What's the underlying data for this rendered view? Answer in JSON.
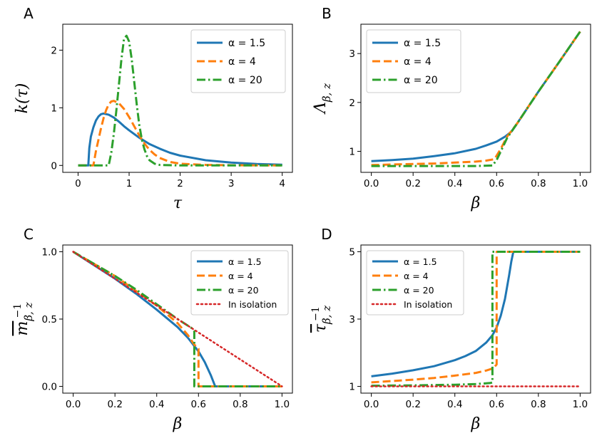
{
  "colors": {
    "a15": "#1f77b4",
    "a4": "#ff7f0e",
    "a20": "#2ca02c",
    "iso": "#d62728"
  },
  "chart_data": [
    {
      "id": "A",
      "type": "line",
      "panel_label": "A",
      "xlabel": "τ",
      "ylabel": "k(τ)",
      "xlim": [
        -0.3,
        4.2
      ],
      "ylim": [
        -0.12,
        2.45
      ],
      "xticks": [
        0,
        1,
        2,
        3,
        4
      ],
      "yticks": [
        0,
        1,
        2
      ],
      "xtick_labels": [
        "0",
        "1",
        "2",
        "3",
        "4"
      ],
      "ytick_labels": [
        "0",
        "1",
        "2"
      ],
      "legend_position": "top-right",
      "series": [
        {
          "name": "α = 1.5",
          "color_key": "a15",
          "style": "solid",
          "x": [
            0,
            0.2,
            0.22,
            0.25,
            0.3,
            0.35,
            0.4,
            0.45,
            0.5,
            0.6,
            0.7,
            0.8,
            0.9,
            1.0,
            1.2,
            1.4,
            1.6,
            1.8,
            2.0,
            2.5,
            3.0,
            3.5,
            4.0
          ],
          "y": [
            0,
            0,
            0.3,
            0.5,
            0.66,
            0.78,
            0.85,
            0.89,
            0.9,
            0.88,
            0.83,
            0.76,
            0.68,
            0.61,
            0.48,
            0.37,
            0.29,
            0.22,
            0.17,
            0.09,
            0.05,
            0.025,
            0.012
          ]
        },
        {
          "name": "α = 4",
          "color_key": "a4",
          "style": "dashed",
          "x": [
            0,
            0.3,
            0.35,
            0.4,
            0.45,
            0.5,
            0.55,
            0.6,
            0.65,
            0.7,
            0.8,
            0.9,
            1.0,
            1.1,
            1.2,
            1.3,
            1.4,
            1.5,
            1.6,
            1.8,
            2.0,
            2.5,
            3.0,
            4.0
          ],
          "y": [
            0,
            0,
            0.25,
            0.45,
            0.65,
            0.82,
            0.96,
            1.06,
            1.11,
            1.12,
            1.08,
            0.98,
            0.84,
            0.68,
            0.52,
            0.38,
            0.27,
            0.19,
            0.13,
            0.06,
            0.03,
            0.01,
            0.003,
            0
          ]
        },
        {
          "name": "α = 20",
          "color_key": "a20",
          "style": "dashdot",
          "x": [
            0,
            0.6,
            0.65,
            0.7,
            0.75,
            0.8,
            0.85,
            0.9,
            0.95,
            1.0,
            1.05,
            1.1,
            1.15,
            1.2,
            1.25,
            1.3,
            1.35,
            1.4,
            1.5,
            1.6,
            2.0,
            4.0
          ],
          "y": [
            0,
            0,
            0.22,
            0.55,
            0.95,
            1.4,
            1.85,
            2.2,
            2.25,
            2.15,
            1.85,
            1.45,
            1.05,
            0.7,
            0.45,
            0.28,
            0.16,
            0.09,
            0.03,
            0.008,
            0,
            0
          ]
        }
      ]
    },
    {
      "id": "B",
      "type": "line",
      "panel_label": "B",
      "xlabel": "β",
      "ylabel": "Λβ,z",
      "ylabel_main": "Λ",
      "ylabel_sub": "β, z",
      "xlim": [
        -0.05,
        1.05
      ],
      "ylim": [
        0.57,
        3.6
      ],
      "xticks": [
        0,
        0.2,
        0.4,
        0.6,
        0.8,
        1.0
      ],
      "yticks": [
        1,
        2,
        3
      ],
      "xtick_labels": [
        "0.0",
        "0.2",
        "0.4",
        "0.6",
        "0.8",
        "1.0"
      ],
      "ytick_labels": [
        "1",
        "2",
        "3"
      ],
      "legend_position": "top-left",
      "series": [
        {
          "name": "α = 1.5",
          "color_key": "a15",
          "style": "solid",
          "x": [
            0,
            0.1,
            0.2,
            0.3,
            0.4,
            0.5,
            0.55,
            0.6,
            0.64,
            0.67,
            0.7,
            0.8,
            0.9,
            1.0
          ],
          "y": [
            0.8,
            0.82,
            0.85,
            0.9,
            0.96,
            1.05,
            1.12,
            1.2,
            1.3,
            1.4,
            1.58,
            2.22,
            2.83,
            3.45
          ]
        },
        {
          "name": "α = 4",
          "color_key": "a4",
          "style": "dashed",
          "x": [
            0,
            0.1,
            0.2,
            0.3,
            0.4,
            0.5,
            0.55,
            0.59,
            0.62,
            0.65,
            0.7,
            0.8,
            0.9,
            1.0
          ],
          "y": [
            0.72,
            0.73,
            0.74,
            0.75,
            0.77,
            0.79,
            0.81,
            0.84,
            1.05,
            1.3,
            1.58,
            2.22,
            2.83,
            3.45
          ]
        },
        {
          "name": "α = 20",
          "color_key": "a20",
          "style": "dashdot",
          "x": [
            0,
            0.2,
            0.4,
            0.5,
            0.58,
            0.6,
            0.65,
            0.7,
            0.8,
            0.9,
            1.0
          ],
          "y": [
            0.7,
            0.7,
            0.7,
            0.7,
            0.71,
            0.82,
            1.27,
            1.58,
            2.22,
            2.83,
            3.45
          ]
        }
      ]
    },
    {
      "id": "C",
      "type": "line",
      "panel_label": "C",
      "xlabel": "β",
      "ylabel": "m̄β,z−1",
      "ylabel_main": "m",
      "ylabel_sub": "β, z",
      "ylabel_sup": "−1",
      "xlim": [
        -0.05,
        1.05
      ],
      "ylim": [
        -0.05,
        1.05
      ],
      "xticks": [
        0,
        0.2,
        0.4,
        0.6,
        0.8,
        1.0
      ],
      "yticks": [
        0,
        0.5,
        1.0
      ],
      "xtick_labels": [
        "0.0",
        "0.2",
        "0.4",
        "0.6",
        "0.8",
        "1.0"
      ],
      "ytick_labels": [
        "0.0",
        "0.5",
        "1.0"
      ],
      "legend_position": "top-right",
      "series": [
        {
          "name": "α = 1.5",
          "color_key": "a15",
          "style": "solid",
          "x": [
            0,
            0.1,
            0.2,
            0.3,
            0.4,
            0.5,
            0.55,
            0.6,
            0.63,
            0.66,
            0.68,
            0.7,
            1.0
          ],
          "y": [
            1.0,
            0.9,
            0.8,
            0.69,
            0.57,
            0.44,
            0.36,
            0.26,
            0.18,
            0.08,
            0,
            0,
            0
          ]
        },
        {
          "name": "α = 4",
          "color_key": "a4",
          "style": "dashed",
          "x": [
            0,
            0.1,
            0.2,
            0.3,
            0.4,
            0.5,
            0.55,
            0.58,
            0.6,
            0.6,
            1.0
          ],
          "y": [
            1.0,
            0.91,
            0.82,
            0.71,
            0.6,
            0.47,
            0.38,
            0.31,
            0.28,
            0,
            0
          ]
        },
        {
          "name": "α = 20",
          "color_key": "a20",
          "style": "dashdot",
          "x": [
            0,
            0.1,
            0.2,
            0.3,
            0.4,
            0.5,
            0.57,
            0.58,
            0.58,
            1.0
          ],
          "y": [
            1.0,
            0.91,
            0.82,
            0.72,
            0.61,
            0.5,
            0.43,
            0.41,
            0,
            0
          ]
        },
        {
          "name": "In isolation",
          "color_key": "iso",
          "style": "dotted",
          "x": [
            0,
            1.0
          ],
          "y": [
            1.0,
            0
          ]
        }
      ]
    },
    {
      "id": "D",
      "type": "line",
      "panel_label": "D",
      "xlabel": "β",
      "ylabel": "τ̄β,z−1",
      "ylabel_main": "τ",
      "ylabel_sub": "β, z",
      "ylabel_sup": "−1",
      "xlim": [
        -0.05,
        1.05
      ],
      "ylim": [
        0.8,
        5.2
      ],
      "xticks": [
        0,
        0.2,
        0.4,
        0.6,
        0.8,
        1.0
      ],
      "yticks": [
        1,
        3,
        5
      ],
      "xtick_labels": [
        "0.0",
        "0.2",
        "0.4",
        "0.6",
        "0.8",
        "1.0"
      ],
      "ytick_labels": [
        "1",
        "3",
        "5"
      ],
      "legend_position": "top-left",
      "series": [
        {
          "name": "α = 1.5",
          "color_key": "a15",
          "style": "solid",
          "x": [
            0,
            0.1,
            0.2,
            0.3,
            0.4,
            0.45,
            0.5,
            0.55,
            0.58,
            0.6,
            0.62,
            0.64,
            0.66,
            0.67,
            0.68,
            0.7,
            1.0
          ],
          "y": [
            1.3,
            1.38,
            1.48,
            1.6,
            1.78,
            1.9,
            2.05,
            2.3,
            2.52,
            2.75,
            3.1,
            3.6,
            4.3,
            4.7,
            5.0,
            5.0,
            5.0
          ]
        },
        {
          "name": "α = 4",
          "color_key": "a4",
          "style": "dashed",
          "x": [
            0,
            0.1,
            0.2,
            0.3,
            0.4,
            0.5,
            0.55,
            0.58,
            0.59,
            0.6,
            0.6,
            1.0
          ],
          "y": [
            1.12,
            1.16,
            1.2,
            1.25,
            1.32,
            1.4,
            1.47,
            1.53,
            1.58,
            1.65,
            5.0,
            5.0
          ]
        },
        {
          "name": "α = 20",
          "color_key": "a20",
          "style": "dashdot",
          "x": [
            0,
            0.2,
            0.4,
            0.5,
            0.57,
            0.58,
            0.58,
            1.0
          ],
          "y": [
            1.02,
            1.03,
            1.05,
            1.07,
            1.1,
            1.12,
            5.0,
            5.0
          ]
        },
        {
          "name": "In isolation",
          "color_key": "iso",
          "style": "dotted",
          "x": [
            0,
            1.0
          ],
          "y": [
            1.0,
            1.0
          ]
        }
      ]
    }
  ]
}
